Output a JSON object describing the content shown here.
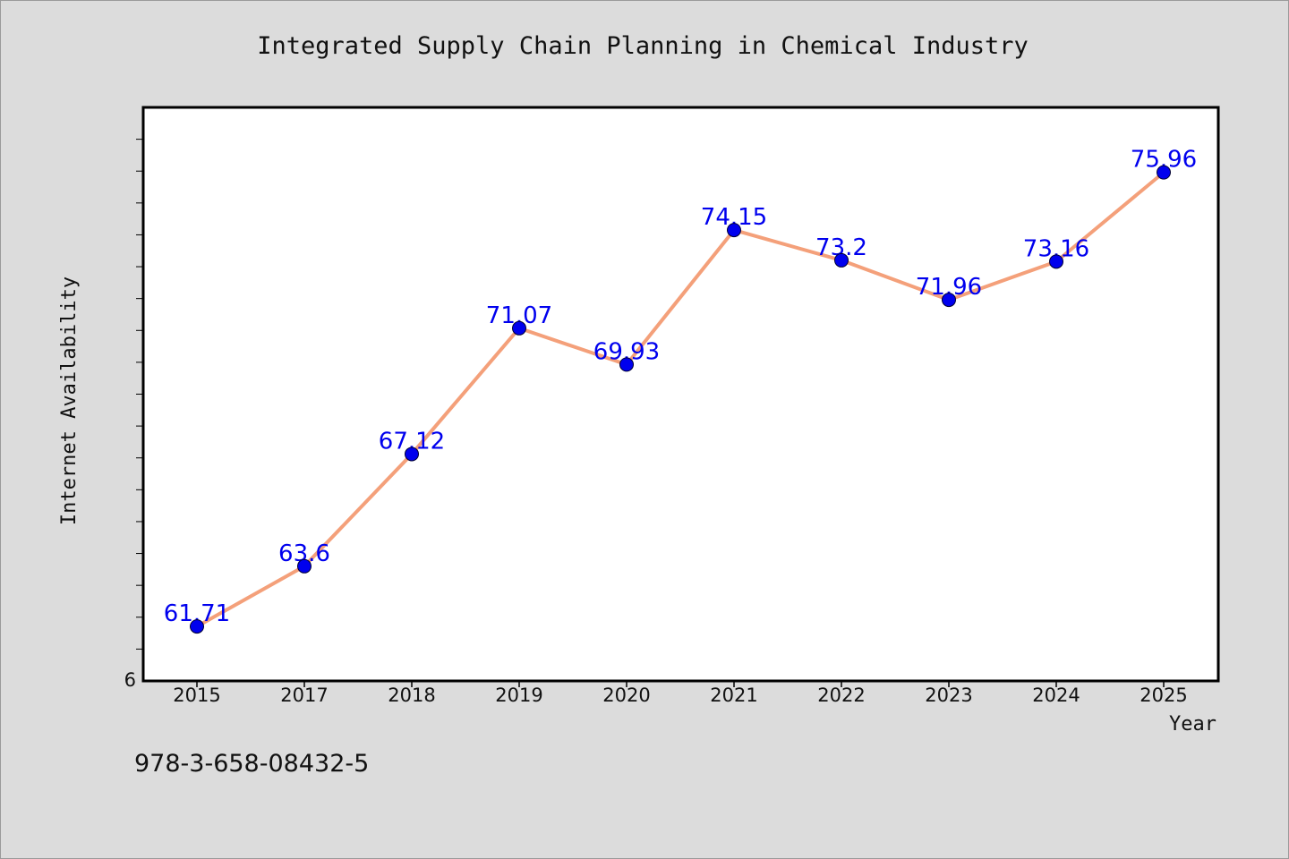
{
  "chart_data": {
    "type": "line",
    "title": "Integrated Supply Chain Planning in Chemical Industry",
    "xlabel": "Year",
    "ylabel": "Internet Availability",
    "categories": [
      "2015",
      "2017",
      "2018",
      "2019",
      "2020",
      "2021",
      "2022",
      "2023",
      "2024",
      "2025"
    ],
    "series": [
      {
        "values": [
          61.71,
          63.6,
          67.12,
          71.07,
          69.93,
          74.15,
          73.2,
          71.96,
          73.16,
          75.96
        ],
        "value_labels": [
          "61.71",
          "63.6",
          "67.12",
          "71.07",
          "69.93",
          "74.15",
          "73.2",
          "71.96",
          "73.16",
          "75.96"
        ]
      }
    ],
    "y_axis_visible_label": "6",
    "ylim": [
      60,
      78
    ],
    "y_minor_tick_step": 1,
    "grid": false,
    "legend": "none",
    "colors": {
      "line": "#f4a07a",
      "marker": "#0000ee",
      "marker_edge": "#000033",
      "data_label": "#0000ee",
      "plot_background": "#ffffff",
      "figure_background": "#dcdcdc"
    }
  },
  "footer": {
    "isbn": "978-3-658-08432-5"
  }
}
